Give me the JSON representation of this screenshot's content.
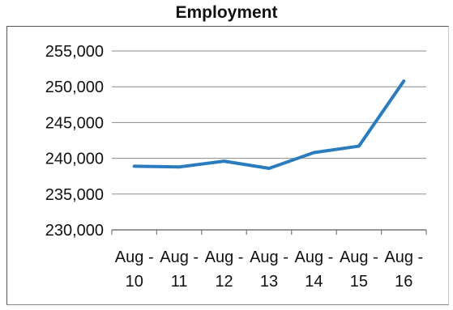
{
  "chart_data": {
    "type": "line",
    "title": "Employment",
    "categories": [
      [
        "Aug -",
        "10"
      ],
      [
        "Aug -",
        "11"
      ],
      [
        "Aug -",
        "12"
      ],
      [
        "Aug -",
        "13"
      ],
      [
        "Aug -",
        "14"
      ],
      [
        "Aug -",
        "15"
      ],
      [
        "Aug -",
        "16"
      ]
    ],
    "series": [
      {
        "values": [
          238900,
          238800,
          239600,
          238600,
          240800,
          241700,
          250800
        ]
      }
    ],
    "ylim": [
      230000,
      255000
    ],
    "yticks": [
      230000,
      235000,
      240000,
      245000,
      250000,
      255000
    ],
    "ytick_labels": [
      "230,000",
      "235,000",
      "240,000",
      "245,000",
      "250,000",
      "255,000"
    ],
    "grid": "horizontal",
    "line_color": "#2b7bbf"
  }
}
